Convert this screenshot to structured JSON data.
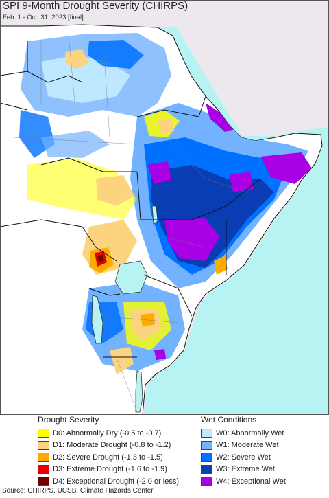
{
  "header": {
    "title": "SPI 9-Month Drought Severity (CHIRPS)",
    "subtitle": "Feb. 1 - Oct. 31, 2023 [final]"
  },
  "legend": {
    "drought": {
      "title": "Drought Severity",
      "items": [
        {
          "code": "D0",
          "label": "D0: Abnormally Dry (-0.5 to -0.7)",
          "color": "#ffff00"
        },
        {
          "code": "D1",
          "label": "D1: Moderate Drought (-0.8 to -1.2)",
          "color": "#fcd37f"
        },
        {
          "code": "D2",
          "label": "D2: Severe Drought (-1.3 to -1.5)",
          "color": "#ffaa00"
        },
        {
          "code": "D3",
          "label": "D3: Extreme Drought (-1.6 to -1.9)",
          "color": "#e60000"
        },
        {
          "code": "D4",
          "label": "D4: Exceptional Drought (-2.0 or less)",
          "color": "#730000"
        }
      ]
    },
    "wet": {
      "title": "Wet Conditions",
      "items": [
        {
          "code": "W0",
          "label": "W0: Abnormally Wet",
          "color": "#bee8ff"
        },
        {
          "code": "W1",
          "label": "W1: Moderate Wet",
          "color": "#73b2ff"
        },
        {
          "code": "W2",
          "label": "W2: Severe Wet",
          "color": "#0070ff"
        },
        {
          "code": "W3",
          "label": "W3: Extreme Wet",
          "color": "#0a3cb4"
        },
        {
          "code": "W4",
          "label": "W4: Exceptional Wet",
          "color": "#aa00e6"
        }
      ]
    }
  },
  "source": "Source: CHIRPS, UCSB, Climate Hazards Center",
  "colors": {
    "sea": "#b8f3f3",
    "outside_land": "#ece8ee",
    "land_normal": "#ffffff",
    "borders": "#111111"
  }
}
